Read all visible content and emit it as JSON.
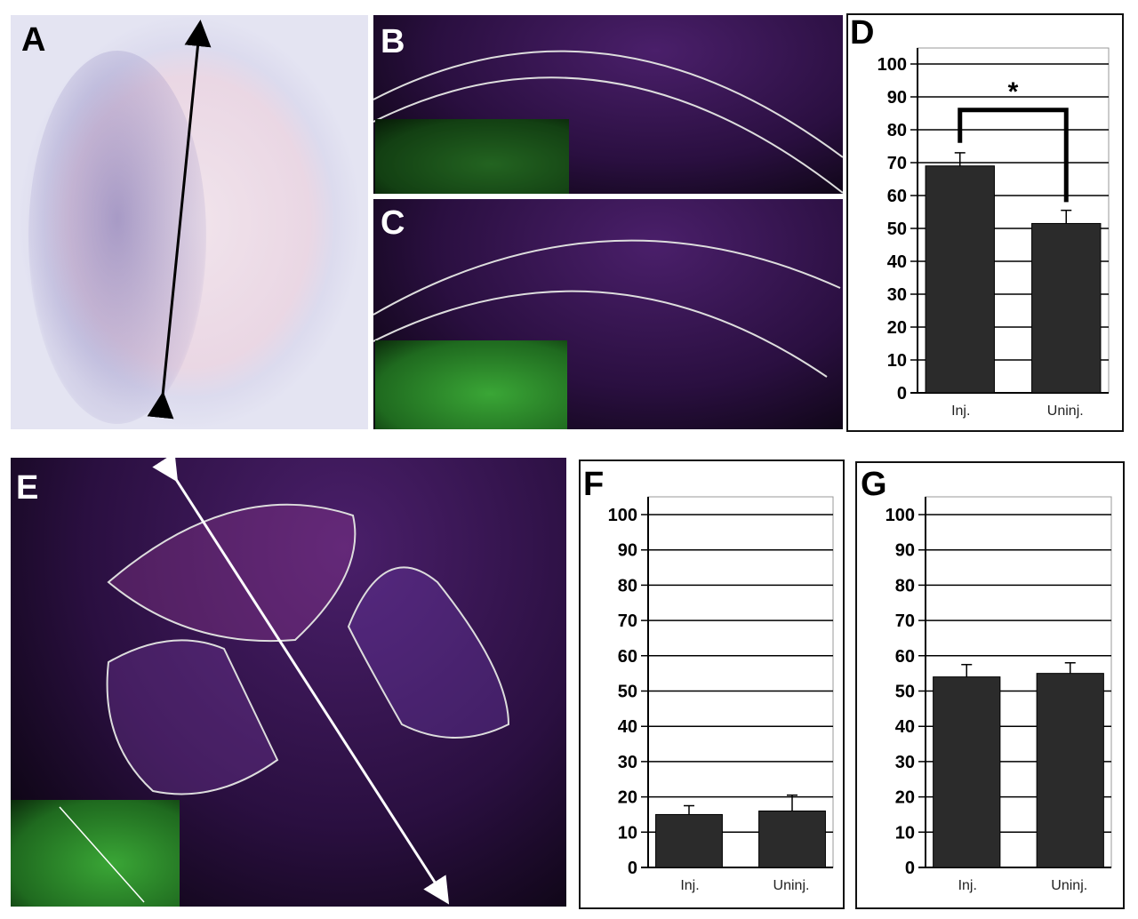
{
  "panels": {
    "a": "A",
    "b": "B",
    "c": "C",
    "d": "D",
    "e": "E",
    "f": "F",
    "g": "G"
  },
  "colors": {
    "bar": "#2b2b2b",
    "inset": "#2f8f2f",
    "tissue": "#3a1550"
  },
  "chart_data": [
    {
      "id": "d",
      "type": "bar",
      "title": "D",
      "categories": [
        "Inj.",
        "Uninj."
      ],
      "values": [
        69,
        51.5
      ],
      "errors": [
        4,
        4
      ],
      "ylim": [
        0,
        100
      ],
      "yticks": [
        0,
        10,
        20,
        30,
        40,
        50,
        60,
        70,
        80,
        90,
        100
      ],
      "grid": true,
      "annotation": "*"
    },
    {
      "id": "f",
      "type": "bar",
      "title": "F",
      "categories": [
        "Inj.",
        "Uninj."
      ],
      "values": [
        15,
        16
      ],
      "errors": [
        2.5,
        4.5
      ],
      "ylim": [
        0,
        100
      ],
      "yticks": [
        0,
        10,
        20,
        30,
        40,
        50,
        60,
        70,
        80,
        90,
        100
      ],
      "grid": true
    },
    {
      "id": "g",
      "type": "bar",
      "title": "G",
      "categories": [
        "Inj.",
        "Uninj."
      ],
      "values": [
        54,
        55
      ],
      "errors": [
        3.5,
        3
      ],
      "ylim": [
        0,
        100
      ],
      "yticks": [
        0,
        10,
        20,
        30,
        40,
        50,
        60,
        70,
        80,
        90,
        100
      ],
      "grid": true
    }
  ]
}
